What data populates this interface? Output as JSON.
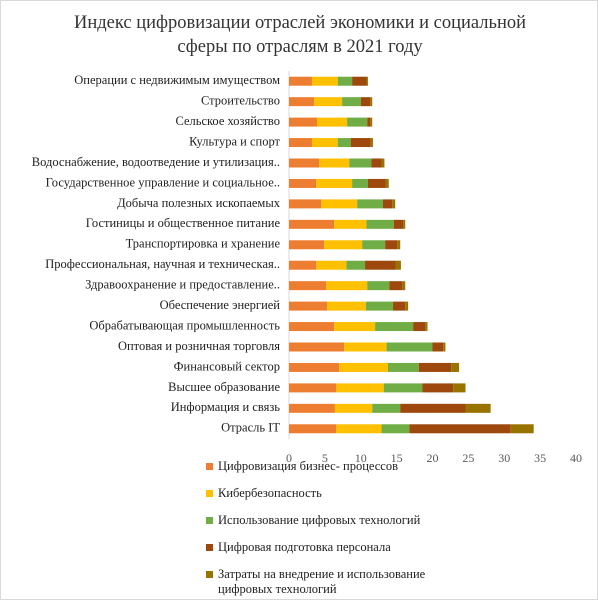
{
  "chart_data": {
    "type": "bar",
    "orientation": "horizontal",
    "stacked": true,
    "title": "Индекс цифровизации отраслей экономики и социальной сферы по отраслям в 2021 году",
    "categories": [
      "Операции с недвижимым имуществом",
      "Строительство",
      "Сельское хозяйство",
      "Культура и спорт",
      "Водоснабжение, водоотведение и утилизация..",
      "Государственное управление и социальное..",
      "Добыча полезных ископаемых",
      "Гостиницы и общественное питание",
      "Транспортировка и хранение",
      "Профессиональная, научная и техническая..",
      "Здравоохранение и предоставление..",
      "Обеспечение энергией",
      "Обрабатывающая промышленность",
      "Оптовая и розничная торговля",
      "Финансовый сектор",
      "Высшее образование",
      "Информация и связь",
      "Отрасль IT"
    ],
    "series": [
      {
        "name": "Цифровизация бизнес- процессов",
        "color": "#ed7d31",
        "values": [
          3.2,
          3.5,
          3.9,
          3.2,
          4.2,
          3.8,
          4.5,
          6.3,
          4.9,
          3.8,
          5.2,
          5.3,
          6.3,
          7.7,
          7.0,
          6.6,
          6.4,
          6.6
        ]
      },
      {
        "name": "Кибербезопасность",
        "color": "#ffc000",
        "values": [
          3.6,
          3.9,
          4.2,
          3.6,
          4.2,
          5.0,
          5.0,
          4.5,
          5.3,
          4.2,
          5.7,
          5.4,
          5.7,
          5.9,
          6.8,
          6.6,
          5.2,
          6.3
        ]
      },
      {
        "name": "Использование цифровых технологий",
        "color": "#70ad47",
        "values": [
          2.0,
          2.6,
          2.8,
          1.8,
          3.1,
          2.2,
          3.6,
          3.8,
          3.2,
          2.6,
          3.1,
          3.8,
          5.3,
          6.4,
          4.3,
          5.4,
          3.9,
          3.9
        ]
      },
      {
        "name": "Цифровая подготовка персонала",
        "color": "#9e480e",
        "values": [
          2.0,
          1.3,
          0.4,
          2.8,
          1.4,
          2.5,
          1.3,
          1.3,
          1.7,
          4.3,
          1.8,
          1.7,
          1.7,
          1.5,
          4.5,
          4.3,
          9.1,
          14.1
        ]
      },
      {
        "name": "Затраты на внедрение и использование цифровых технологий",
        "color": "#997300",
        "values": [
          0.2,
          0.3,
          0.3,
          0.3,
          0.4,
          0.4,
          0.4,
          0.3,
          0.4,
          0.7,
          0.4,
          0.4,
          0.3,
          0.3,
          1.1,
          1.7,
          3.5,
          3.2
        ]
      }
    ],
    "xlim": [
      0,
      40
    ],
    "xticks": [
      0,
      5,
      10,
      15,
      20,
      25,
      30,
      35,
      40
    ]
  }
}
